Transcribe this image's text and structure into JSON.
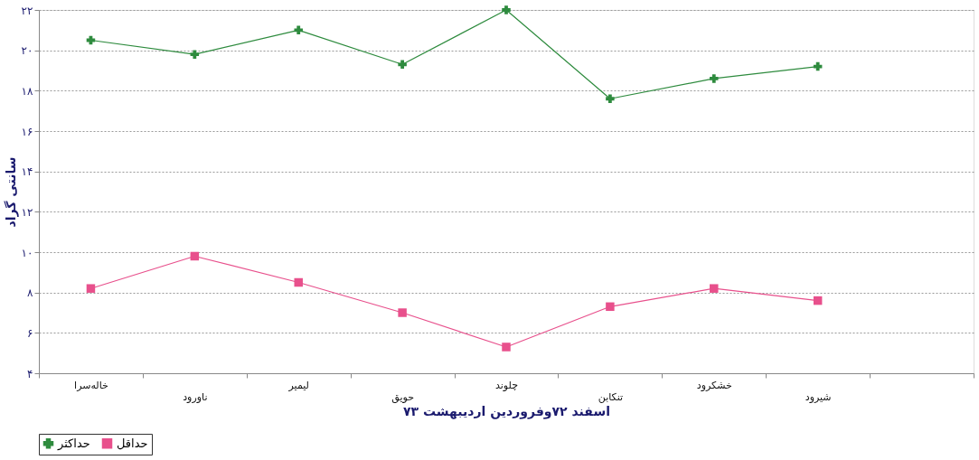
{
  "chart_data": {
    "type": "line",
    "xlabel": "اسفند ۷۲وفروردین اردیبهشت ۷۳",
    "ylabel": "سانتی گراد",
    "categories": [
      "خالەسرا",
      "ناورود",
      "لیمیر",
      "حویق",
      "چلوند",
      "تنکابن",
      "خشکرود",
      "شیرود",
      null
    ],
    "series": [
      {
        "name": "حداکثر",
        "color": "#2e8b3e",
        "marker": "cross",
        "values": [
          20.5,
          19.8,
          21.0,
          19.3,
          22.0,
          17.6,
          18.6,
          19.2,
          null
        ]
      },
      {
        "name": "حداقل",
        "color": "#e8508c",
        "marker": "square",
        "values": [
          8.2,
          9.8,
          8.5,
          7.0,
          5.3,
          7.3,
          8.2,
          7.6,
          null
        ]
      }
    ],
    "ylim": [
      4,
      22
    ],
    "yticks": [
      {
        "value": 4,
        "label": "۴"
      },
      {
        "value": 6,
        "label": "۶"
      },
      {
        "value": 8,
        "label": "۸"
      },
      {
        "value": 10,
        "label": "۱۰"
      },
      {
        "value": 12,
        "label": "۱۲"
      },
      {
        "value": 14,
        "label": "۱۴"
      },
      {
        "value": 16,
        "label": "۱۶"
      },
      {
        "value": 18,
        "label": "۱۸"
      },
      {
        "value": 20,
        "label": "۲۰"
      },
      {
        "value": 22,
        "label": "۲۲"
      }
    ],
    "grid": "y",
    "legend": "bottom",
    "line_style": "solid"
  }
}
